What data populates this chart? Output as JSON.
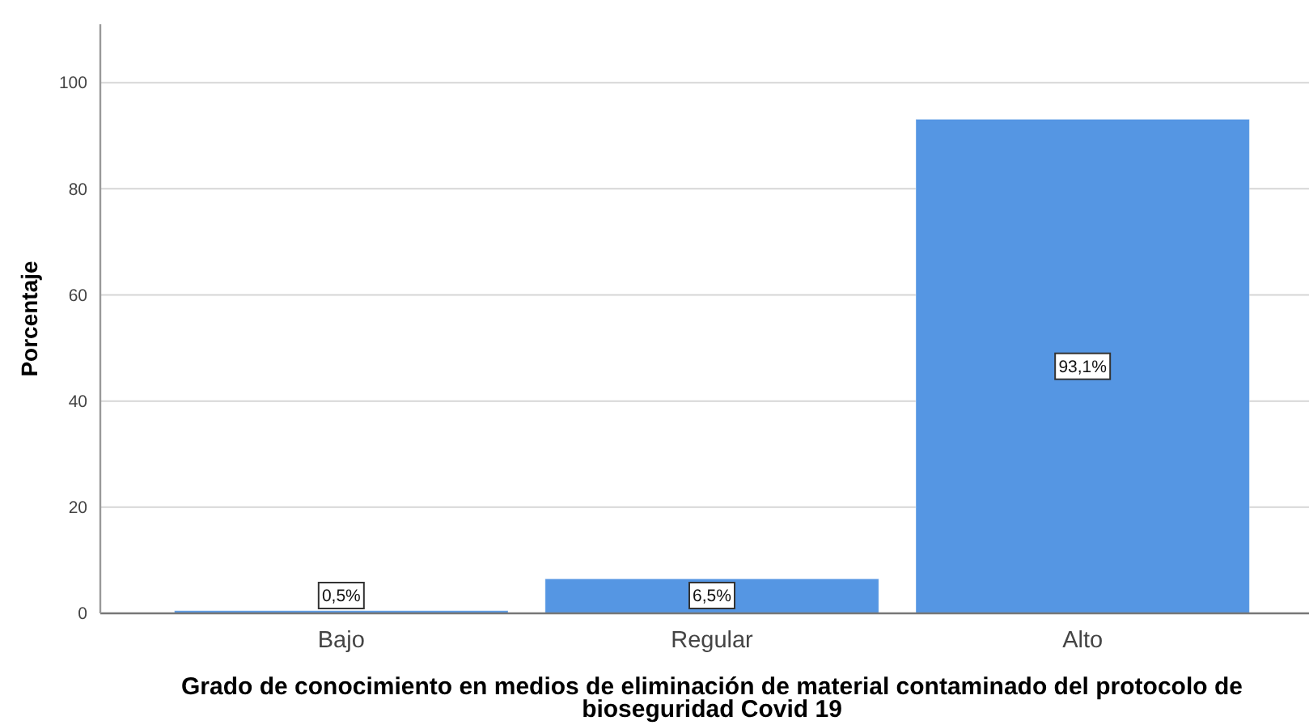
{
  "chart_data": {
    "type": "bar",
    "xlabel": "Grado de conocimiento en medios de eliminación de material contaminado del protocolo de bioseguridad Covid 19",
    "ylabel": "Porcentaje",
    "categories": [
      "Bajo",
      "Regular",
      "Alto"
    ],
    "values": [
      0.5,
      6.5,
      93.1
    ],
    "color": "#5596e3",
    "value_labels": [
      "0,5%",
      "6,5%",
      "93,1%"
    ],
    "ylim": [
      0,
      111
    ],
    "yticks": [
      0,
      20,
      40,
      60,
      80,
      100
    ],
    "grid": "y"
  }
}
